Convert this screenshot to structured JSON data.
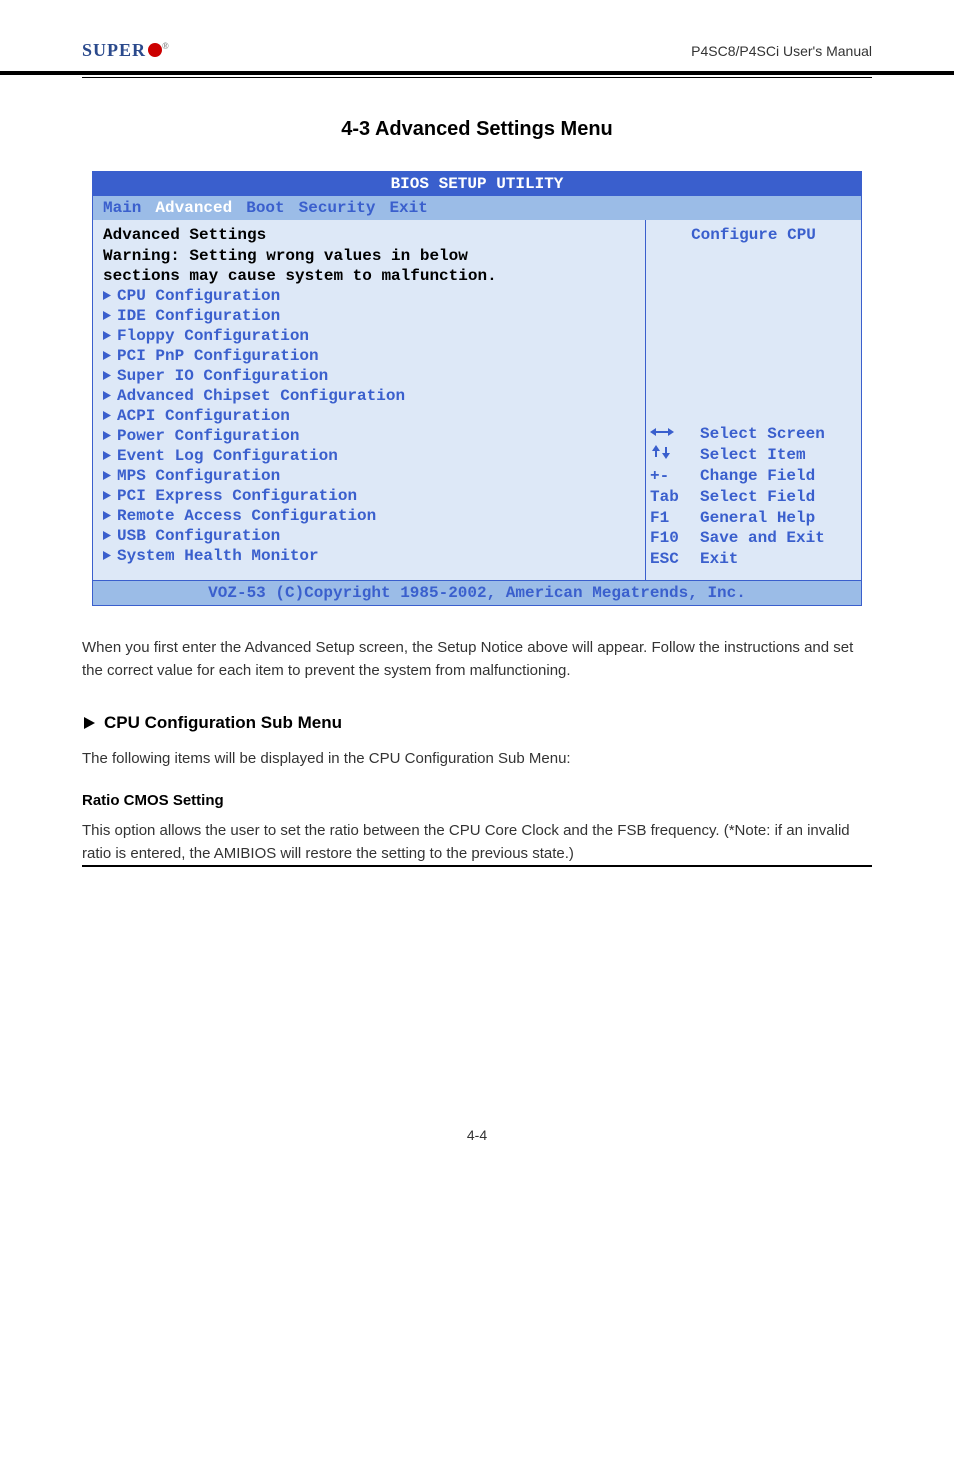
{
  "page": {
    "logo_text": "SUPER",
    "header_right": "P4SC8/P4SCi User's Manual",
    "section_title": "4-3 Advanced Settings Menu",
    "page_number": "4-4"
  },
  "bios": {
    "title": "BIOS SETUP UTILITY",
    "tabs": [
      "Main",
      "Advanced",
      "Boot",
      "Security",
      "Exit"
    ],
    "active_tab_index": 1,
    "left": {
      "heading": "Advanced Settings",
      "warning_line1": "Warning: Setting wrong values in below",
      "warning_line2": "sections may cause system to malfunction.",
      "items": [
        "CPU Configuration",
        "IDE Configuration",
        "Floppy Configuration",
        "PCI PnP Configuration",
        "Super IO Configuration",
        "Advanced Chipset Configuration",
        "ACPI Configuration",
        "Power Configuration",
        "Event Log Configuration",
        "MPS Configuration",
        "PCI Express Configuration",
        "Remote Access Configuration",
        "USB Configuration",
        "System Health Monitor"
      ]
    },
    "right": {
      "hint": "Configure CPU",
      "help": [
        {
          "key": "↔",
          "label": "Select Screen"
        },
        {
          "key": "↑↓",
          "label": "Select Item"
        },
        {
          "key": "+-",
          "label": "Change Field"
        },
        {
          "key": "Tab",
          "label": "Select Field"
        },
        {
          "key": "F1",
          "label": "General Help"
        },
        {
          "key": "F10",
          "label": "Save and Exit"
        },
        {
          "key": "ESC",
          "label": "Exit"
        }
      ]
    },
    "footer": "VOZ-53 (C)Copyright 1985-2002, American Megatrends, Inc."
  },
  "doc": {
    "warning_paragraph": "When you first enter the Advanced Setup screen, the Setup Notice above will appear. Follow the instructions and set the correct value for each item to prevent the system from malfunctioning.",
    "cpu_heading": "CPU Configuration Sub Menu",
    "cpu_desc": "The following items will be displayed in the CPU Configuration Sub Menu:",
    "ratio_label": "Ratio CMOS Setting",
    "ratio_desc": "This option allows the user to set the ratio between the CPU Core Clock and the FSB frequency. (*Note: if an invalid ratio is entered, the AMIBIOS will restore the setting to the previous state.)"
  },
  "colors": {
    "bios_blue": "#3a5fcd",
    "bios_lightblue": "#9bbce7",
    "bios_bg": "#dde8f7",
    "logo_blue": "#2b4a8c",
    "logo_red": "#c00"
  }
}
